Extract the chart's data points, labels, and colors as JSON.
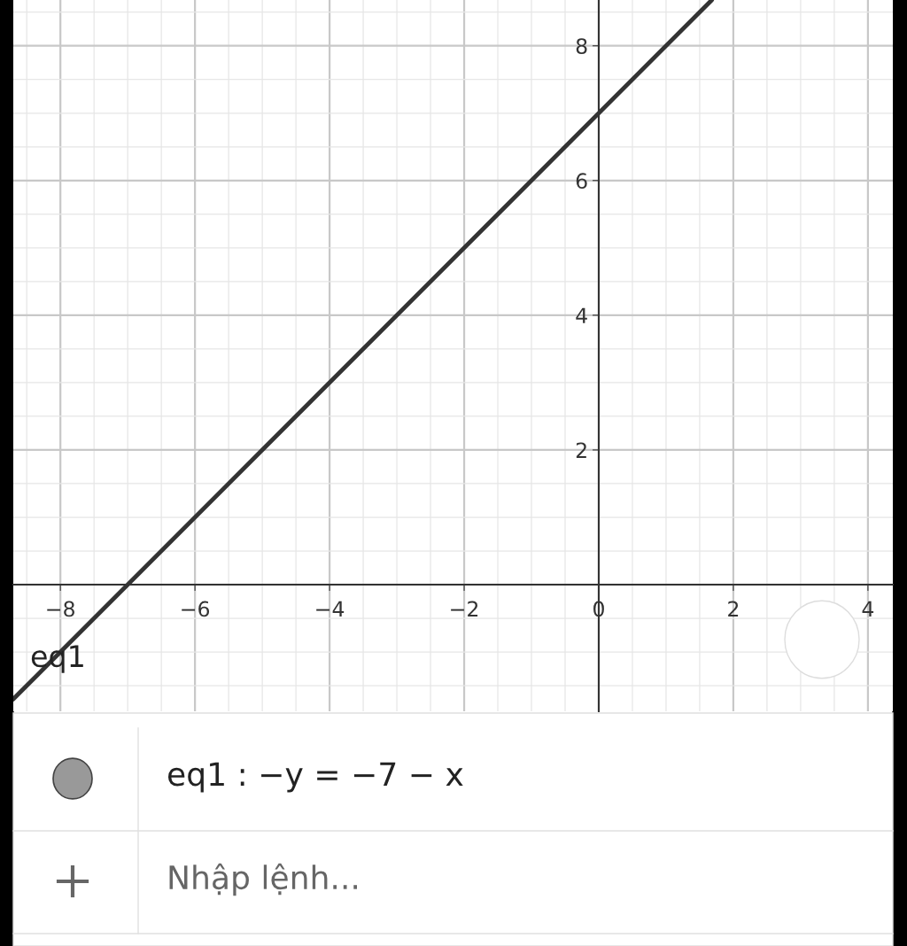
{
  "chart_data": {
    "type": "line",
    "series": [
      {
        "name": "eq1",
        "color": "#333333",
        "x": [
          -8.7,
          1.68
        ],
        "values": [
          -1.7,
          8.68
        ]
      }
    ],
    "xlim": [
      -8.7,
      4.37
    ],
    "ylim": [
      -1.88,
      8.68
    ],
    "xticks": [
      -8,
      -6,
      -4,
      -2,
      0,
      2,
      4
    ],
    "yticks": [
      2,
      4,
      6,
      8
    ],
    "grid": true,
    "marker": "none",
    "line_style": "solid",
    "annotations": [
      "eq1 : −y = −7 − x",
      "Nhập lệnh..."
    ]
  }
}
